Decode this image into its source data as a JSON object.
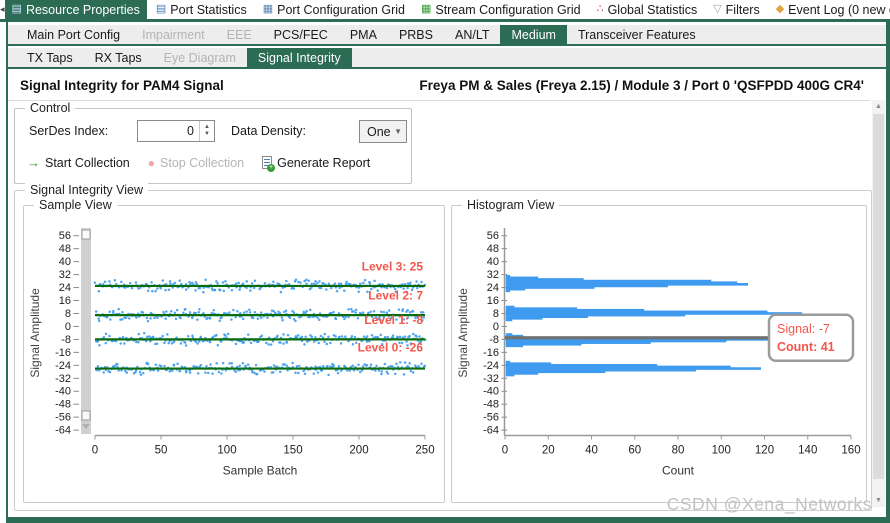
{
  "icons": {
    "scroll_left": "◂",
    "scroll_right": "▸",
    "close": "×",
    "resource_properties": "▤",
    "port_statistics": "▤",
    "port_config_grid": "▦",
    "stream_config_grid": "▦",
    "global_statistics": "∴",
    "filters": "▽",
    "event_log": "◆",
    "spinner_up": "▲",
    "spinner_down": "▼",
    "dropdown": "▼",
    "start_arrow": "→",
    "stop_circle": "●",
    "scroll_up": "▲",
    "scroll_down": "▼"
  },
  "colors": {
    "accent_green": "#2c6b54",
    "dot_blue": "#3f9bef",
    "bar_blue": "#3f9bef",
    "level_line_green": "#0b6c0c",
    "annotation_red": "#f4564b",
    "crosshair_gray": "#707070"
  },
  "toolbar": {
    "tabs": [
      {
        "label": "Resource Properties",
        "selected": true
      },
      {
        "label": "Port Statistics",
        "selected": false
      },
      {
        "label": "Port Configuration Grid",
        "selected": false
      },
      {
        "label": "Stream Configuration Grid",
        "selected": false
      },
      {
        "label": "Global Statistics",
        "selected": false
      },
      {
        "label": "Filters",
        "selected": false
      },
      {
        "label": "Event Log (0 new e",
        "selected": false
      }
    ]
  },
  "tabs_level2": {
    "items": [
      {
        "label": "Main Port Config",
        "state": "normal"
      },
      {
        "label": "Impairment",
        "state": "disabled"
      },
      {
        "label": "EEE",
        "state": "disabled"
      },
      {
        "label": "PCS/FEC",
        "state": "normal"
      },
      {
        "label": "PMA",
        "state": "normal"
      },
      {
        "label": "PRBS",
        "state": "normal"
      },
      {
        "label": "AN/LT",
        "state": "normal"
      },
      {
        "label": "Medium",
        "state": "selected"
      },
      {
        "label": "Transceiver Features",
        "state": "normal"
      }
    ]
  },
  "tabs_level3": {
    "items": [
      {
        "label": "TX Taps",
        "state": "normal"
      },
      {
        "label": "RX Taps",
        "state": "normal"
      },
      {
        "label": "Eye Diagram",
        "state": "disabled"
      },
      {
        "label": "Signal Integrity",
        "state": "selected"
      }
    ]
  },
  "header": {
    "title": "Signal Integrity for PAM4 Signal",
    "resource": "Freya PM & Sales (Freya 2.15) / Module 3 / Port 0 'QSFPDD 400G CR4'"
  },
  "control": {
    "legend": "Control",
    "serdes_label": "SerDes Index:",
    "serdes_value": "0",
    "density_label": "Data Density:",
    "density_value": "One",
    "start_label": "Start Collection",
    "stop_label": "Stop Collection",
    "report_label": "Generate Report"
  },
  "view": {
    "legend": "Signal Integrity View",
    "sample_legend": "Sample View",
    "histogram_legend": "Histogram View"
  },
  "watermark": "CSDN @Xena_Networks",
  "chart_data": [
    {
      "type": "scatter",
      "title": "Sample View",
      "xlabel": "Sample Batch",
      "ylabel": "Signal Amplitude",
      "xlim": [
        0,
        250
      ],
      "ylim": [
        -64,
        56
      ],
      "x_ticks": [
        0,
        50,
        100,
        150,
        200,
        250
      ],
      "y_ticks": [
        56,
        48,
        40,
        32,
        24,
        16,
        8,
        0,
        -8,
        -16,
        -24,
        -32,
        -40,
        -48,
        -56,
        -64
      ],
      "grid": false,
      "points_per_level": 250,
      "noise_halfwidth": 4.2,
      "dot_color": "#3f9bef",
      "line_color": "#0b6c0c",
      "annotation_color": "#f4564b",
      "levels": [
        {
          "name": "Level 3",
          "value": 25,
          "annotation": "Level 3: 25",
          "annotation_amp": 37
        },
        {
          "name": "Level 2",
          "value": 7,
          "annotation": "Level 2: 7",
          "annotation_amp": 19
        },
        {
          "name": "Level 1",
          "value": -8,
          "annotation": "Level 1: -8",
          "annotation_amp": 4
        },
        {
          "name": "Level 0",
          "value": -26,
          "annotation": "Level 0: -26",
          "annotation_amp": -13
        }
      ]
    },
    {
      "type": "bar",
      "orientation": "horizontal",
      "title": "Histogram View",
      "xlabel": "Count",
      "ylabel": "Signal Amplitude",
      "xlim": [
        0,
        160
      ],
      "ylim": [
        -64,
        56
      ],
      "x_ticks": [
        0,
        20,
        40,
        60,
        80,
        100,
        120,
        140,
        160
      ],
      "y_ticks": [
        56,
        48,
        40,
        32,
        24,
        16,
        8,
        0,
        -8,
        -16,
        -24,
        -32,
        -40,
        -48,
        -56,
        -64
      ],
      "grid": false,
      "bar_color": "#3f9bef",
      "bars": [
        {
          "amp": 31,
          "count": 2
        },
        {
          "amp": 30,
          "count": 15
        },
        {
          "amp": 29,
          "count": 36
        },
        {
          "amp": 28,
          "count": 95
        },
        {
          "amp": 27,
          "count": 107
        },
        {
          "amp": 26,
          "count": 112
        },
        {
          "amp": 25,
          "count": 75
        },
        {
          "amp": 24,
          "count": 41
        },
        {
          "amp": 23,
          "count": 9
        },
        {
          "amp": 22,
          "count": 2
        },
        {
          "amp": 12,
          "count": 4
        },
        {
          "amp": 11,
          "count": 33
        },
        {
          "amp": 10,
          "count": 64
        },
        {
          "amp": 9,
          "count": 121
        },
        {
          "amp": 8,
          "count": 137
        },
        {
          "amp": 7,
          "count": 83
        },
        {
          "amp": 6,
          "count": 38
        },
        {
          "amp": 5,
          "count": 17
        },
        {
          "amp": 4,
          "count": 3
        },
        {
          "amp": -5,
          "count": 3
        },
        {
          "amp": -6,
          "count": 8
        },
        {
          "amp": -7,
          "count": 41
        },
        {
          "amp": -8,
          "count": 130
        },
        {
          "amp": -9,
          "count": 102
        },
        {
          "amp": -10,
          "count": 67
        },
        {
          "amp": -11,
          "count": 35
        },
        {
          "amp": -12,
          "count": 8
        },
        {
          "amp": -22,
          "count": 2
        },
        {
          "amp": -23,
          "count": 21
        },
        {
          "amp": -24,
          "count": 70
        },
        {
          "amp": -25,
          "count": 104
        },
        {
          "amp": -26,
          "count": 118
        },
        {
          "amp": -27,
          "count": 88
        },
        {
          "amp": -28,
          "count": 46
        },
        {
          "amp": -29,
          "count": 15
        },
        {
          "amp": -30,
          "count": 4
        }
      ],
      "hover": {
        "amp": -7,
        "count": 41,
        "tooltip_lines": [
          "Signal: -7",
          "Count: 41"
        ],
        "crosshair_color": "#707070",
        "text_color": "#f4564b"
      }
    }
  ]
}
